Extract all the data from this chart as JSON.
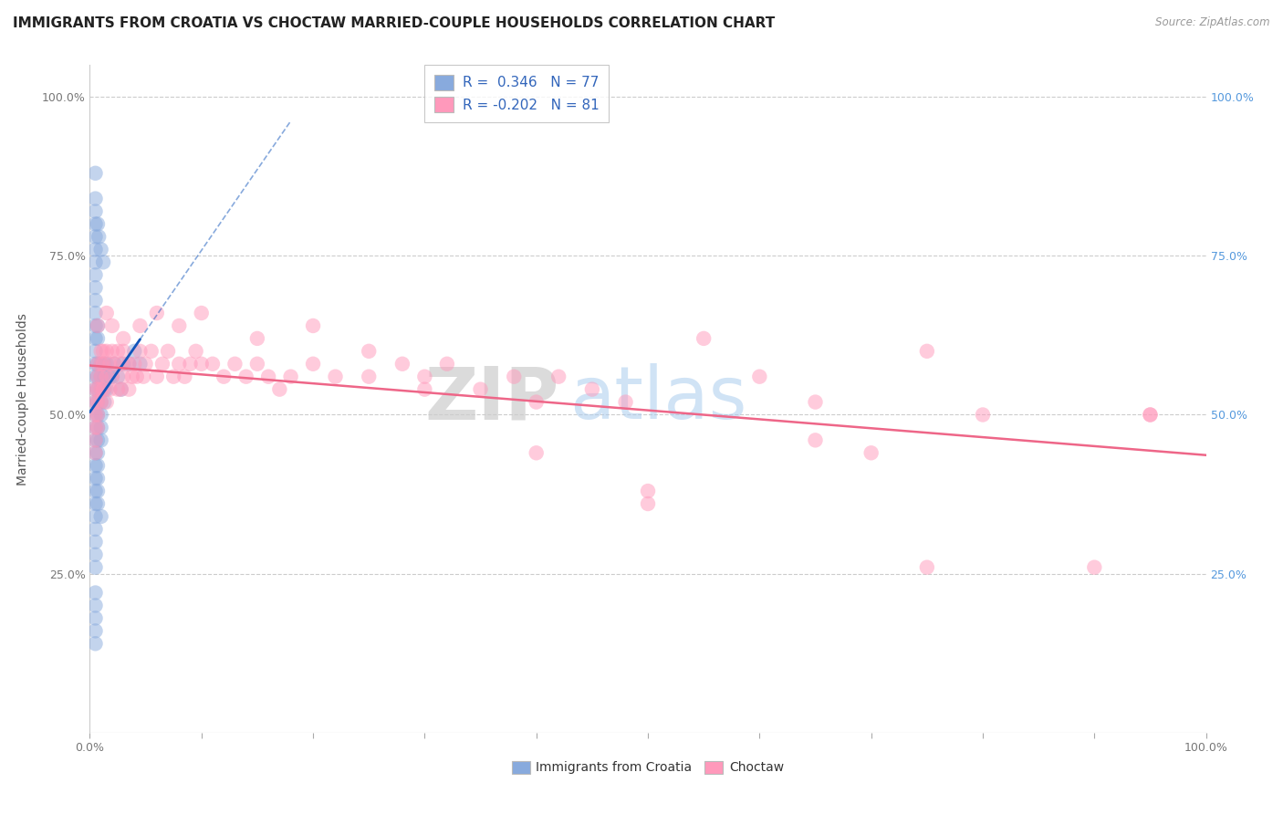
{
  "title": "IMMIGRANTS FROM CROATIA VS CHOCTAW MARRIED-COUPLE HOUSEHOLDS CORRELATION CHART",
  "source": "Source: ZipAtlas.com",
  "ylabel": "Married-couple Households",
  "legend1_r": "0.346",
  "legend1_n": "77",
  "legend2_r": "-0.202",
  "legend2_n": "81",
  "ylim": [
    0.0,
    1.05
  ],
  "xlim": [
    0.0,
    1.0
  ],
  "yticks": [
    0.25,
    0.5,
    0.75,
    1.0
  ],
  "ytick_labels": [
    "25.0%",
    "50.0%",
    "75.0%",
    "100.0%"
  ],
  "blue_color": "#88AADD",
  "pink_color": "#FF99BB",
  "blue_line_color": "#1155BB",
  "pink_line_color": "#EE6688",
  "blue_scatter_x": [
    0.005,
    0.005,
    0.005,
    0.005,
    0.005,
    0.005,
    0.005,
    0.005,
    0.005,
    0.005,
    0.005,
    0.005,
    0.005,
    0.005,
    0.005,
    0.005,
    0.005,
    0.005,
    0.005,
    0.005,
    0.005,
    0.005,
    0.005,
    0.005,
    0.005,
    0.005,
    0.005,
    0.005,
    0.007,
    0.007,
    0.007,
    0.007,
    0.007,
    0.007,
    0.007,
    0.007,
    0.007,
    0.007,
    0.007,
    0.007,
    0.007,
    0.007,
    0.01,
    0.01,
    0.01,
    0.01,
    0.01,
    0.01,
    0.01,
    0.01,
    0.013,
    0.013,
    0.013,
    0.013,
    0.015,
    0.015,
    0.018,
    0.02,
    0.022,
    0.025,
    0.028,
    0.03,
    0.035,
    0.04,
    0.045,
    0.005,
    0.005,
    0.005,
    0.007,
    0.008,
    0.01,
    0.012,
    0.005,
    0.005,
    0.005,
    0.005,
    0.005
  ],
  "blue_scatter_y": [
    0.58,
    0.56,
    0.54,
    0.52,
    0.5,
    0.48,
    0.46,
    0.44,
    0.42,
    0.4,
    0.38,
    0.36,
    0.34,
    0.32,
    0.62,
    0.64,
    0.66,
    0.68,
    0.7,
    0.72,
    0.6,
    0.74,
    0.76,
    0.78,
    0.8,
    0.3,
    0.28,
    0.26,
    0.58,
    0.56,
    0.54,
    0.52,
    0.5,
    0.48,
    0.46,
    0.44,
    0.42,
    0.4,
    0.62,
    0.64,
    0.38,
    0.36,
    0.34,
    0.58,
    0.56,
    0.54,
    0.52,
    0.5,
    0.48,
    0.46,
    0.58,
    0.56,
    0.54,
    0.52,
    0.58,
    0.54,
    0.56,
    0.56,
    0.58,
    0.56,
    0.54,
    0.58,
    0.58,
    0.6,
    0.58,
    0.88,
    0.84,
    0.82,
    0.8,
    0.78,
    0.76,
    0.74,
    0.22,
    0.2,
    0.18,
    0.16,
    0.14
  ],
  "pink_scatter_x": [
    0.005,
    0.005,
    0.005,
    0.005,
    0.005,
    0.005,
    0.007,
    0.007,
    0.007,
    0.007,
    0.007,
    0.007,
    0.01,
    0.01,
    0.01,
    0.01,
    0.01,
    0.012,
    0.012,
    0.012,
    0.015,
    0.015,
    0.015,
    0.018,
    0.018,
    0.02,
    0.02,
    0.022,
    0.025,
    0.025,
    0.028,
    0.028,
    0.03,
    0.03,
    0.035,
    0.035,
    0.038,
    0.04,
    0.042,
    0.045,
    0.048,
    0.05,
    0.055,
    0.06,
    0.065,
    0.07,
    0.075,
    0.08,
    0.085,
    0.09,
    0.095,
    0.1,
    0.11,
    0.12,
    0.13,
    0.14,
    0.15,
    0.16,
    0.17,
    0.18,
    0.2,
    0.22,
    0.25,
    0.28,
    0.3,
    0.32,
    0.35,
    0.38,
    0.4,
    0.42,
    0.45,
    0.48,
    0.5,
    0.55,
    0.6,
    0.65,
    0.7,
    0.75,
    0.8,
    0.95,
    0.95
  ],
  "pink_scatter_y": [
    0.54,
    0.52,
    0.5,
    0.48,
    0.46,
    0.44,
    0.58,
    0.56,
    0.54,
    0.52,
    0.5,
    0.48,
    0.6,
    0.58,
    0.56,
    0.54,
    0.52,
    0.6,
    0.58,
    0.54,
    0.6,
    0.56,
    0.52,
    0.58,
    0.54,
    0.6,
    0.56,
    0.58,
    0.6,
    0.54,
    0.58,
    0.54,
    0.6,
    0.56,
    0.58,
    0.54,
    0.56,
    0.58,
    0.56,
    0.6,
    0.56,
    0.58,
    0.6,
    0.56,
    0.58,
    0.6,
    0.56,
    0.58,
    0.56,
    0.58,
    0.6,
    0.58,
    0.58,
    0.56,
    0.58,
    0.56,
    0.58,
    0.56,
    0.54,
    0.56,
    0.58,
    0.56,
    0.6,
    0.58,
    0.56,
    0.58,
    0.54,
    0.56,
    0.52,
    0.56,
    0.54,
    0.52,
    0.38,
    0.62,
    0.56,
    0.52,
    0.44,
    0.6,
    0.5,
    0.5,
    0.5
  ],
  "pink_extra_x": [
    0.007,
    0.015,
    0.02,
    0.03,
    0.045,
    0.06,
    0.08,
    0.1,
    0.15,
    0.2,
    0.25,
    0.3,
    0.4,
    0.5,
    0.65,
    0.75,
    0.9
  ],
  "pink_extra_y": [
    0.64,
    0.66,
    0.64,
    0.62,
    0.64,
    0.66,
    0.64,
    0.66,
    0.62,
    0.64,
    0.56,
    0.54,
    0.44,
    0.36,
    0.46,
    0.26,
    0.26
  ],
  "background_color": "#FFFFFF",
  "watermark_zip": "ZIP",
  "watermark_atlas": "atlas",
  "title_fontsize": 11,
  "axis_label_fontsize": 10,
  "tick_fontsize": 9,
  "right_tick_color": "#5599DD"
}
